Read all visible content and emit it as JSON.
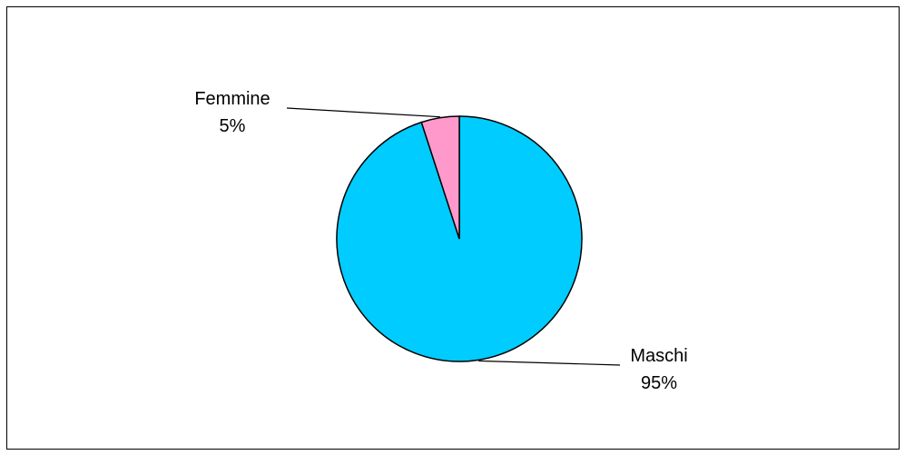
{
  "chart_data": {
    "type": "pie",
    "title": "",
    "slices": [
      {
        "label": "Maschi",
        "value": 95,
        "percent_label": "95%",
        "color": "#00CCFF"
      },
      {
        "label": "Femmine",
        "value": 5,
        "percent_label": "5%",
        "color": "#FF99CC"
      }
    ],
    "legend": "none",
    "outline_color": "#000000"
  }
}
